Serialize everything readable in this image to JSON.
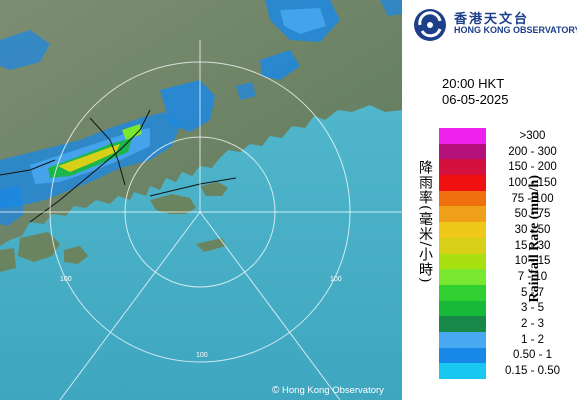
{
  "map": {
    "range_ring_labels": [
      "100",
      "100",
      "100"
    ],
    "copyright_symbol": "©",
    "copyright_text": "Hong Kong Observatory",
    "sea_color": "#4fb3c8",
    "land_color": "#6f8767"
  },
  "header": {
    "name_cn": "香港天文台",
    "name_en": "HONG KONG OBSERVATORY"
  },
  "timestamp": {
    "time": "20:00 HKT",
    "date": "06-05-2025"
  },
  "legend": {
    "title_cn": "降雨率(毫米/小時)",
    "title_en": "Rainfall Rate (mm/h)",
    "entries": [
      {
        "label": ">300",
        "color": "#ee22ee"
      },
      {
        "label": "200 - 300",
        "color": "#b3107c"
      },
      {
        "label": "150 - 200",
        "color": "#d4103c"
      },
      {
        "label": "100 - 150",
        "color": "#f01010"
      },
      {
        "label": "75 - 100",
        "color": "#f07010"
      },
      {
        "label": "50 - 75",
        "color": "#f0a018"
      },
      {
        "label": "30 - 50",
        "color": "#f0c818"
      },
      {
        "label": "15 - 30",
        "color": "#d8d018"
      },
      {
        "label": "10 - 15",
        "color": "#a8e010"
      },
      {
        "label": "7 - 10",
        "color": "#7ae830"
      },
      {
        "label": "5 - 7",
        "color": "#30d030"
      },
      {
        "label": "3 - 5",
        "color": "#18b838"
      },
      {
        "label": "2 - 3",
        "color": "#188848"
      },
      {
        "label": "1 - 2",
        "color": "#48a8f0"
      },
      {
        "label": "0.50 - 1",
        "color": "#1888e8"
      },
      {
        "label": "0.15 - 0.50",
        "color": "#18c8f0"
      }
    ]
  }
}
